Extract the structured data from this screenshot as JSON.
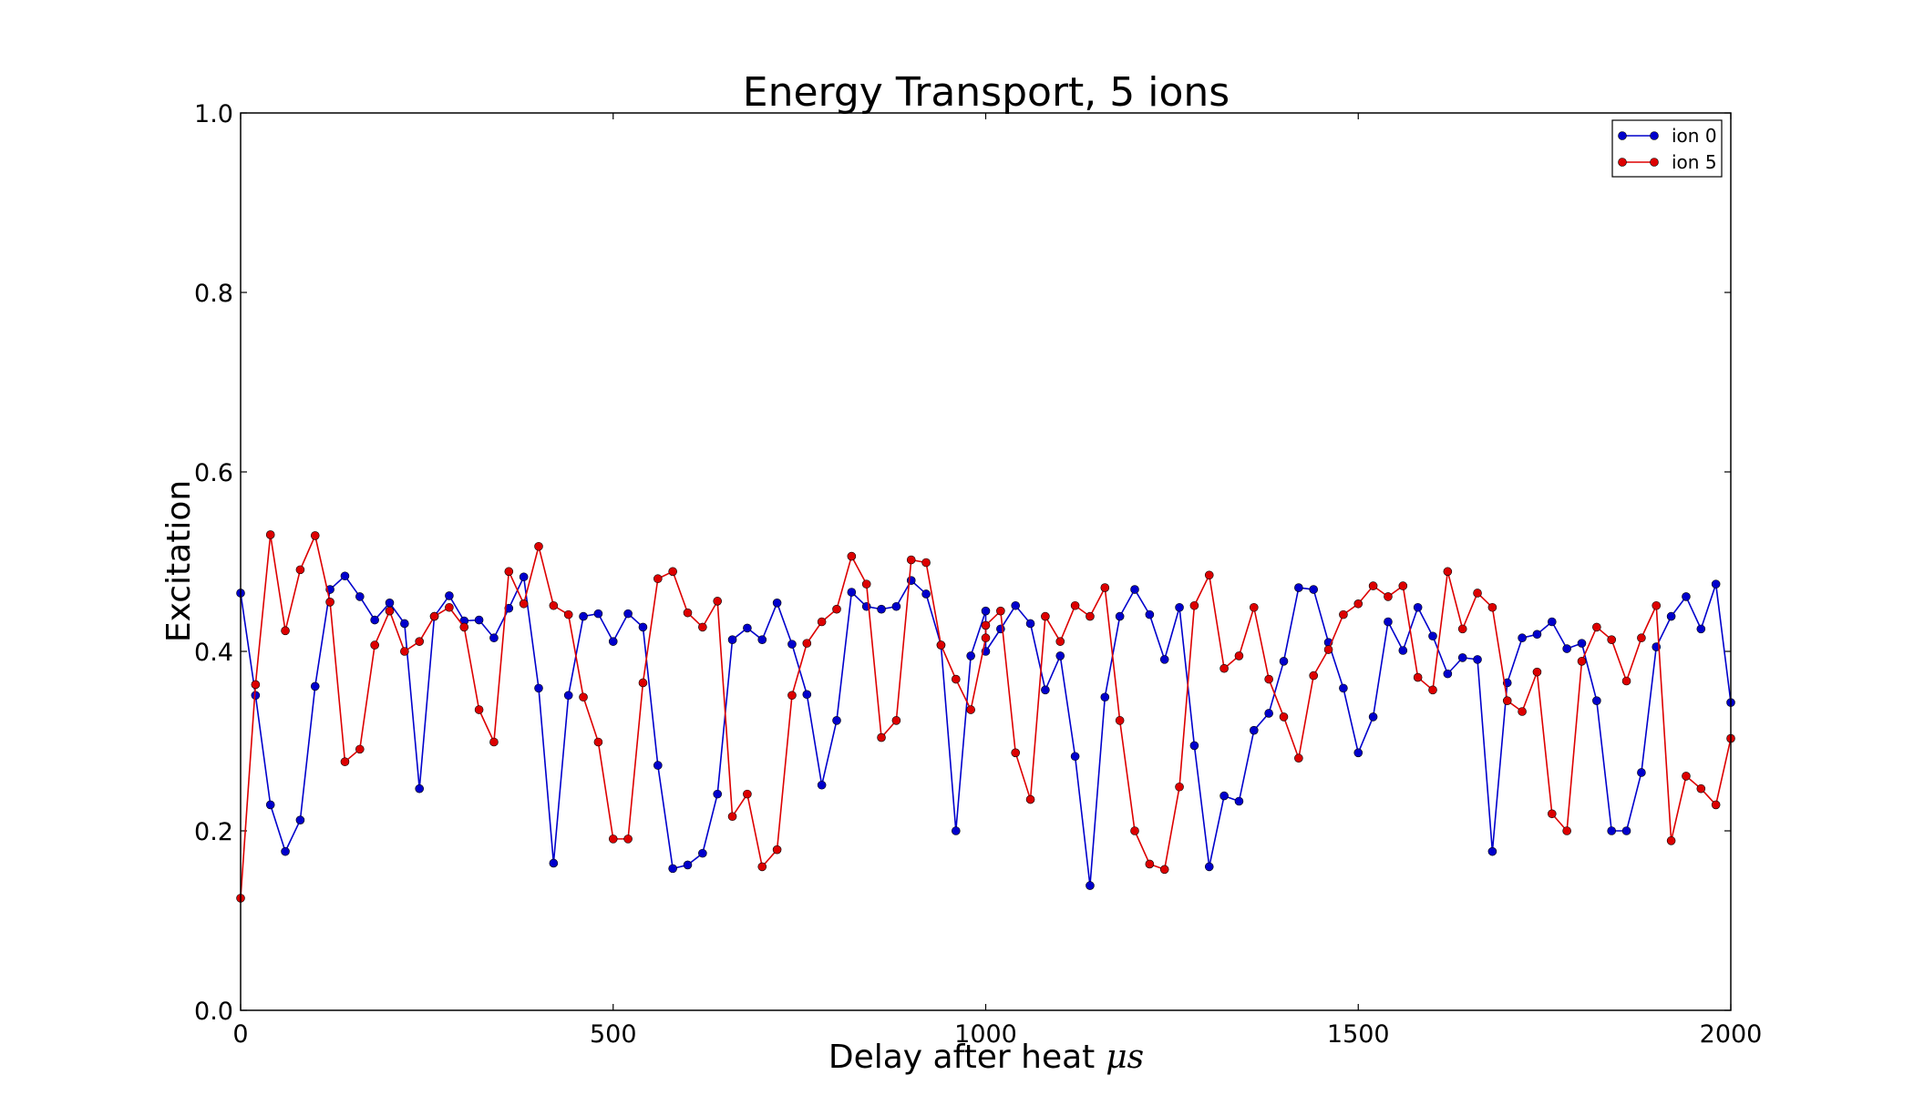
{
  "chart_data": {
    "type": "line",
    "title": "Energy Transport, 5 ions",
    "xlabel": "Delay after heat",
    "xlabel_unit": "μs",
    "ylabel": "Excitation",
    "xlim": [
      0,
      2000
    ],
    "ylim": [
      0.0,
      1.0
    ],
    "xticks": [
      "0",
      "500",
      "1000",
      "1500",
      "2000"
    ],
    "yticks": [
      "0.0",
      "0.2",
      "0.4",
      "0.6",
      "0.8",
      "1.0"
    ],
    "grid": false,
    "legend_position": "top-right",
    "series": [
      {
        "name": "ion 0",
        "color": "#0000cc",
        "x": [
          0,
          20,
          40,
          60,
          80,
          100,
          120,
          140,
          160,
          180,
          200,
          220,
          240,
          260,
          280,
          300,
          320,
          340,
          360,
          380,
          400,
          420,
          440,
          460,
          480,
          500,
          520,
          540,
          560,
          580,
          600,
          620,
          640,
          660,
          680,
          700,
          720,
          740,
          760,
          780,
          800,
          820,
          840,
          860,
          880,
          900,
          920,
          940,
          960,
          980,
          1000,
          1000,
          1020,
          1040,
          1060,
          1080,
          1100,
          1120,
          1140,
          1160,
          1180,
          1200,
          1220,
          1240,
          1260,
          1280,
          1300,
          1320,
          1340,
          1360,
          1380,
          1400,
          1420,
          1440,
          1460,
          1480,
          1500,
          1520,
          1540,
          1560,
          1580,
          1600,
          1620,
          1640,
          1660,
          1680,
          1700,
          1720,
          1740,
          1760,
          1780,
          1800,
          1820,
          1840,
          1860,
          1880,
          1900,
          1920,
          1940,
          1960,
          1980,
          2000
        ],
        "y": [
          0.465,
          0.351,
          0.229,
          0.177,
          0.212,
          0.361,
          0.469,
          0.484,
          0.461,
          0.435,
          0.454,
          0.431,
          0.247,
          0.439,
          0.462,
          0.434,
          0.435,
          0.415,
          0.448,
          0.483,
          0.359,
          0.164,
          0.351,
          0.439,
          0.442,
          0.411,
          0.442,
          0.427,
          0.273,
          0.158,
          0.162,
          0.175,
          0.241,
          0.413,
          0.426,
          0.413,
          0.454,
          0.408,
          0.352,
          0.251,
          0.323,
          0.466,
          0.45,
          0.447,
          0.45,
          0.479,
          0.464,
          0.407,
          0.2,
          0.395,
          0.445,
          0.4,
          0.425,
          0.451,
          0.431,
          0.357,
          0.395,
          0.283,
          0.139,
          0.349,
          0.439,
          0.469,
          0.441,
          0.391,
          0.449,
          0.295,
          0.16,
          0.239,
          0.233,
          0.312,
          0.331,
          0.389,
          0.471,
          0.469,
          0.41,
          0.359,
          0.287,
          0.327,
          0.433,
          0.401,
          0.449,
          0.417,
          0.375,
          0.393,
          0.391,
          0.177,
          0.365,
          0.415,
          0.419,
          0.433,
          0.403,
          0.409,
          0.345,
          0.2,
          0.2,
          0.265,
          0.405,
          0.439,
          0.461,
          0.425,
          0.475,
          0.343
        ]
      },
      {
        "name": "ion 5",
        "color": "#dd0000",
        "x": [
          0,
          20,
          40,
          60,
          80,
          100,
          120,
          140,
          160,
          180,
          200,
          220,
          240,
          260,
          280,
          300,
          320,
          340,
          360,
          380,
          400,
          420,
          440,
          460,
          480,
          500,
          520,
          540,
          560,
          580,
          600,
          620,
          640,
          660,
          680,
          700,
          720,
          740,
          760,
          780,
          800,
          820,
          840,
          860,
          880,
          900,
          920,
          940,
          960,
          980,
          1000,
          1000,
          1020,
          1040,
          1060,
          1080,
          1100,
          1120,
          1140,
          1160,
          1180,
          1200,
          1220,
          1240,
          1260,
          1280,
          1300,
          1320,
          1340,
          1360,
          1380,
          1400,
          1420,
          1440,
          1460,
          1480,
          1500,
          1520,
          1540,
          1560,
          1580,
          1600,
          1620,
          1640,
          1660,
          1680,
          1700,
          1720,
          1740,
          1760,
          1780,
          1800,
          1820,
          1840,
          1860,
          1880,
          1900,
          1920,
          1940,
          1960,
          1980,
          2000
        ],
        "y": [
          0.125,
          0.363,
          0.53,
          0.423,
          0.491,
          0.529,
          0.455,
          0.277,
          0.291,
          0.407,
          0.445,
          0.4,
          0.411,
          0.439,
          0.449,
          0.427,
          0.335,
          0.299,
          0.489,
          0.453,
          0.517,
          0.451,
          0.441,
          0.349,
          0.299,
          0.191,
          0.191,
          0.365,
          0.481,
          0.489,
          0.443,
          0.427,
          0.456,
          0.216,
          0.241,
          0.16,
          0.179,
          0.351,
          0.409,
          0.433,
          0.447,
          0.506,
          0.475,
          0.304,
          0.323,
          0.502,
          0.499,
          0.407,
          0.369,
          0.335,
          0.415,
          0.429,
          0.445,
          0.287,
          0.235,
          0.439,
          0.411,
          0.451,
          0.439,
          0.471,
          0.323,
          0.2,
          0.163,
          0.157,
          0.249,
          0.451,
          0.485,
          0.381,
          0.395,
          0.449,
          0.369,
          0.327,
          0.281,
          0.373,
          0.402,
          0.441,
          0.453,
          0.473,
          0.461,
          0.473,
          0.371,
          0.357,
          0.489,
          0.425,
          0.465,
          0.449,
          0.345,
          0.333,
          0.377,
          0.219,
          0.2,
          0.389,
          0.427,
          0.413,
          0.367,
          0.415,
          0.451,
          0.189,
          0.261,
          0.247,
          0.229,
          0.303
        ]
      }
    ]
  }
}
